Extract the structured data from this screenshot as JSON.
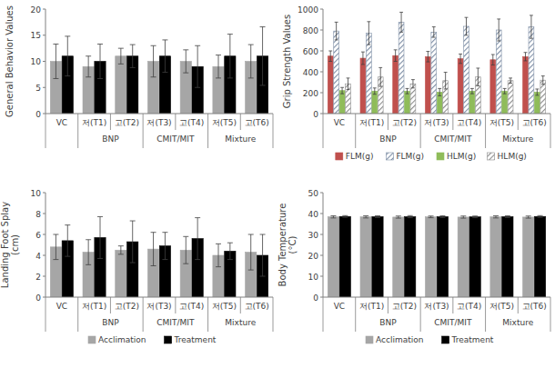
{
  "chart_data": [
    {
      "type": "bar",
      "y_label": "General Behavior Values",
      "categories": [
        "VC",
        "저(T1)",
        "고(T2)",
        "저(T3)",
        "고(T4)",
        "저(T5)",
        "고(T6)"
      ],
      "category_groups": [
        null,
        "BNP",
        "BNP",
        "CMIT/MIT",
        "CMIT/MIT",
        "Mixture",
        "Mixture"
      ],
      "ylim": [
        0,
        20
      ],
      "yticks": [
        0,
        5,
        10,
        15,
        20
      ],
      "series": [
        {
          "color": "#a6a6a6",
          "values": [
            10,
            9,
            11,
            10,
            10,
            9,
            10
          ],
          "errors": [
            3.3,
            2,
            1.5,
            3,
            2.2,
            2.2,
            3.2
          ]
        },
        {
          "color": "#000000",
          "values": [
            11,
            10,
            11,
            11,
            9,
            11,
            11
          ],
          "errors": [
            3.8,
            3.3,
            2.2,
            3.1,
            4,
            4.2,
            5.6
          ]
        }
      ]
    },
    {
      "type": "bar",
      "y_label": "Grip Strength Values",
      "categories": [
        "VC",
        "저(T1)",
        "고(T2)",
        "저(T3)",
        "고(T4)",
        "저(T5)",
        "고(T6)"
      ],
      "category_groups": [
        null,
        "BNP",
        "BNP",
        "CMIT/MIT",
        "CMIT/MIT",
        "Mixture",
        "Mixture"
      ],
      "ylim": [
        0,
        1000
      ],
      "yticks": [
        0,
        200,
        400,
        600,
        800,
        1000
      ],
      "legend": "bottom",
      "series": [
        {
          "name": "FLM(g)",
          "color": "#c0504d",
          "values": [
            550,
            530,
            555,
            545,
            525,
            515,
            545
          ],
          "errors": [
            50,
            60,
            55,
            50,
            45,
            50,
            40
          ]
        },
        {
          "name": "FLM(g)",
          "color": "#7f8fa6",
          "line_style": "hatched",
          "values": [
            790,
            770,
            875,
            780,
            835,
            800,
            830
          ],
          "errors": [
            85,
            110,
            95,
            50,
            85,
            105,
            110
          ]
        },
        {
          "name": "HLM(g)",
          "color": "#8fbc5a",
          "values": [
            220,
            215,
            215,
            205,
            215,
            215,
            205
          ],
          "errors": [
            30,
            30,
            25,
            35,
            25,
            25,
            30
          ]
        },
        {
          "name": "HLM(g)",
          "color": "#8c8c8c",
          "line_style": "hatched",
          "values": [
            285,
            350,
            285,
            315,
            350,
            315,
            320
          ],
          "errors": [
            55,
            90,
            40,
            80,
            85,
            25,
            40
          ]
        }
      ]
    },
    {
      "type": "bar",
      "y_label": "Landing Foot Splay\n(cm)",
      "categories": [
        "VC",
        "저(T1)",
        "고(T2)",
        "저(T3)",
        "고(T4)",
        "저(T5)",
        "고(T6)"
      ],
      "category_groups": [
        null,
        "BNP",
        "BNP",
        "CMIT/MIT",
        "CMIT/MIT",
        "Mixture",
        "Mixture"
      ],
      "ylim": [
        0,
        10
      ],
      "yticks": [
        0,
        2,
        4,
        6,
        8,
        10
      ],
      "legend": "bottom",
      "series": [
        {
          "name": "Acclimation",
          "color": "#a6a6a6",
          "values": [
            4.8,
            4.3,
            4.5,
            4.6,
            4.5,
            4.0,
            4.3
          ],
          "errors": [
            1.2,
            1.2,
            0.4,
            1.6,
            1.3,
            1.1,
            1.7
          ]
        },
        {
          "name": "Treatment",
          "color": "#000000",
          "values": [
            5.4,
            5.7,
            5.3,
            4.9,
            5.6,
            4.4,
            4.0
          ],
          "errors": [
            1.5,
            2.0,
            2.0,
            1.3,
            2.0,
            0.8,
            2.0
          ]
        }
      ]
    },
    {
      "type": "bar",
      "y_label": "Body Temperature\n(°C)",
      "categories": [
        "VC",
        "저(T1)",
        "고(T2)",
        "저(T3)",
        "고(T4)",
        "저(T5)",
        "고(T6)"
      ],
      "category_groups": [
        null,
        "BNP",
        "BNP",
        "CMIT/MIT",
        "CMIT/MIT",
        "Mixture",
        "Mixture"
      ],
      "ylim": [
        0,
        50
      ],
      "yticks": [
        0,
        10,
        20,
        30,
        40,
        50
      ],
      "legend": "bottom",
      "series": [
        {
          "name": "Acclimation",
          "color": "#a6a6a6",
          "values": [
            38.4,
            38.4,
            38.3,
            38.4,
            38.3,
            38.4,
            38.3
          ],
          "errors": [
            0.5,
            0.5,
            0.5,
            0.4,
            0.5,
            0.5,
            0.5
          ]
        },
        {
          "name": "Treatment",
          "color": "#000000",
          "values": [
            38.6,
            38.5,
            38.5,
            38.5,
            38.4,
            38.5,
            38.6
          ],
          "errors": [
            0.4,
            0.4,
            0.5,
            0.4,
            0.4,
            0.4,
            0.4
          ]
        }
      ]
    }
  ]
}
